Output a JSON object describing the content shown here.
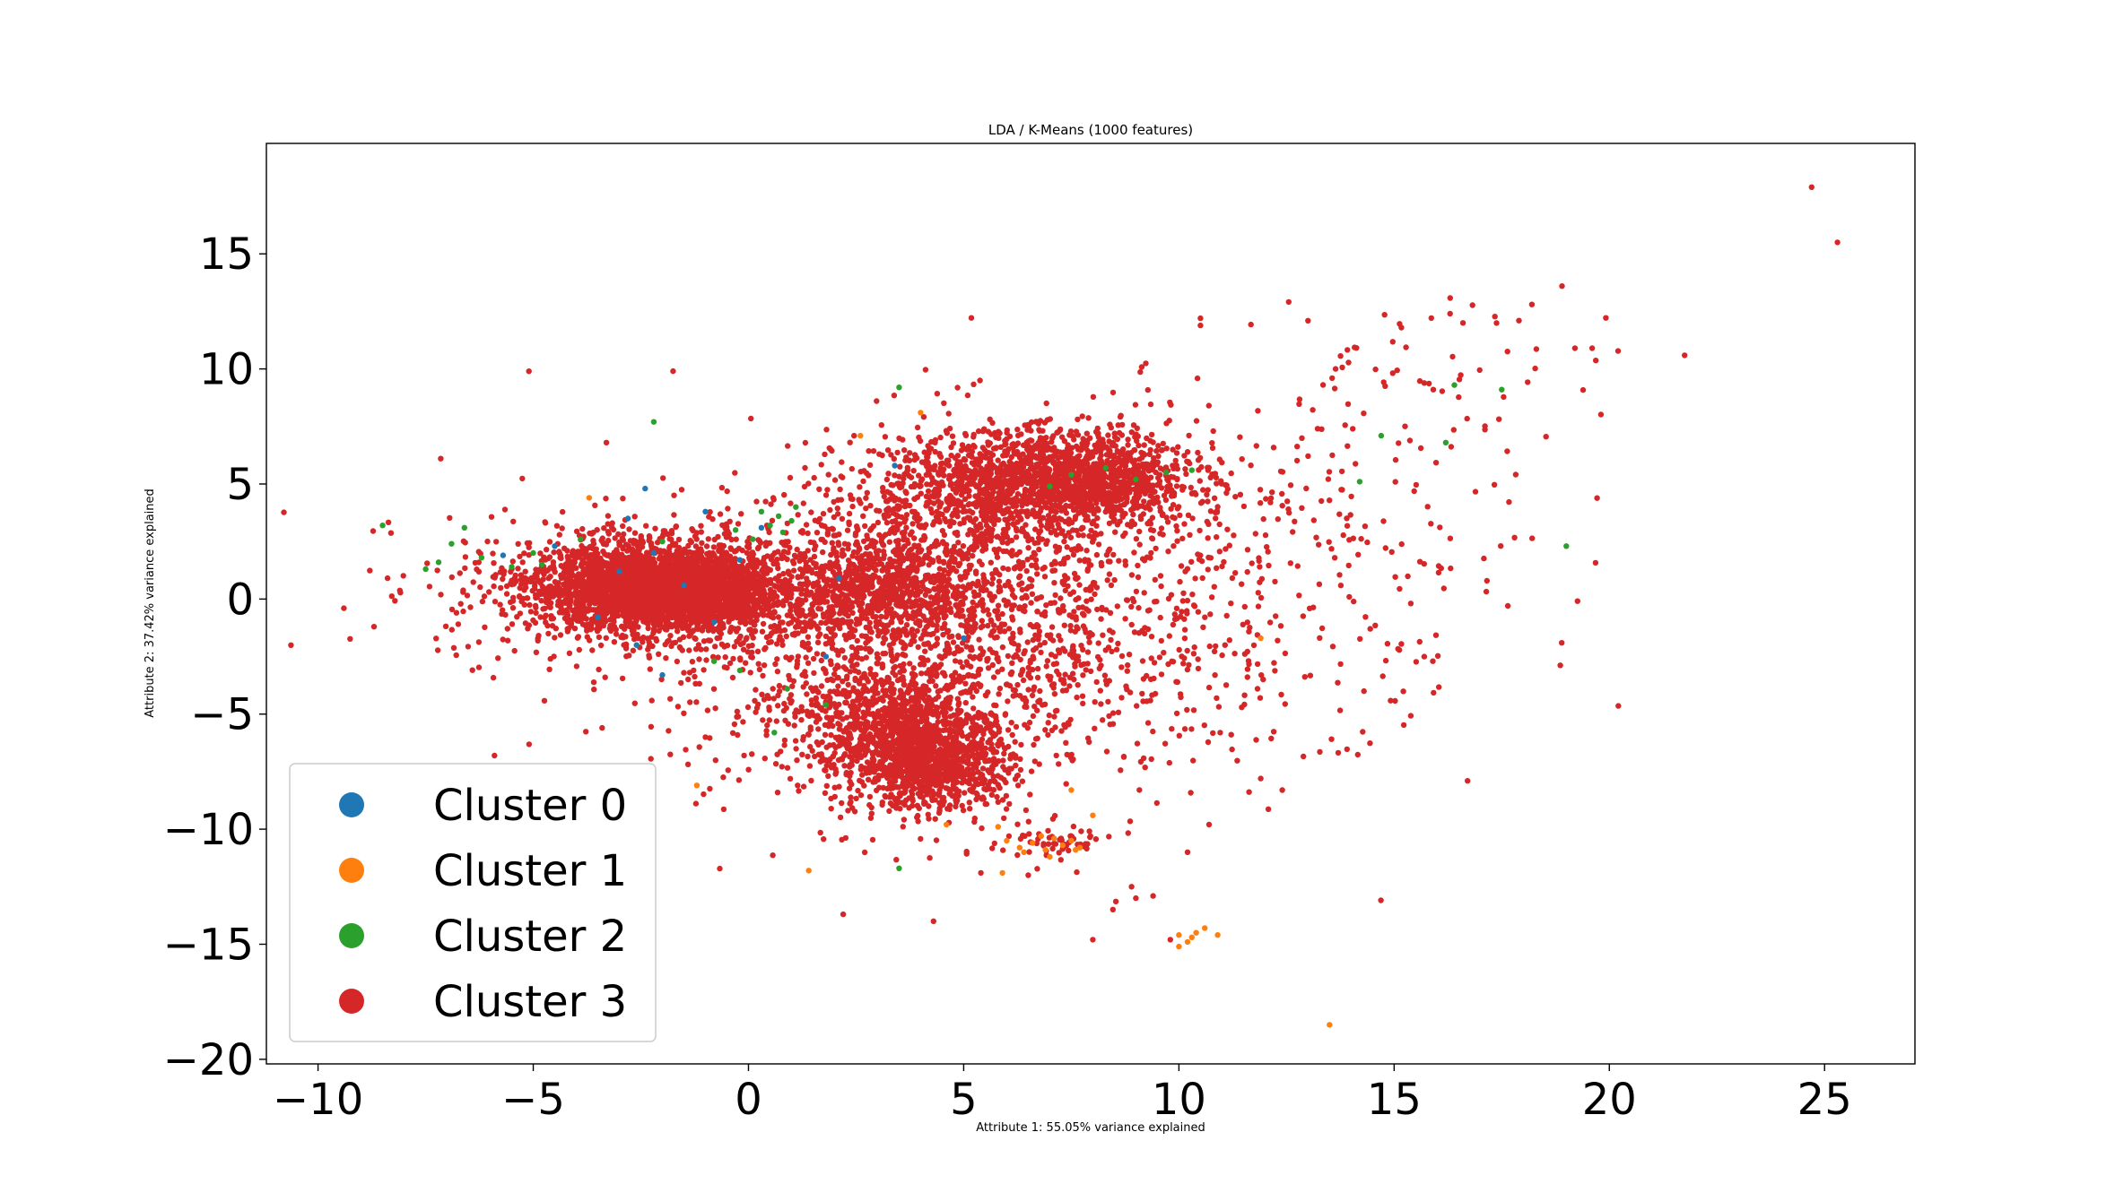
{
  "chart_data": {
    "type": "scatter",
    "title": "LDA / K-Means (1000 features)",
    "xlabel": "Attribute 1: 55.05% variance explained",
    "ylabel": "Attribute 2: 37.42% variance explained",
    "xlim": [
      -11.2,
      27.1
    ],
    "ylim": [
      -20.2,
      19.8
    ],
    "xticks": [
      -10,
      -5,
      0,
      5,
      10,
      15,
      20,
      25
    ],
    "xtick_labels": [
      "−10",
      "−5",
      "0",
      "5",
      "10",
      "15",
      "20",
      "25"
    ],
    "yticks": [
      -20,
      -15,
      -10,
      -5,
      0,
      5,
      10,
      15
    ],
    "ytick_labels": [
      "−20",
      "−15",
      "−10",
      "−5",
      "0",
      "5",
      "10",
      "15"
    ],
    "grid": false,
    "legend_position": "lower-left",
    "series": [
      {
        "name": "Cluster 0",
        "color": "#1f77b4",
        "points": [
          [
            -2.4,
            4.8
          ],
          [
            -2.8,
            3.5
          ],
          [
            -2.0,
            -3.3
          ],
          [
            -1.5,
            0.6
          ],
          [
            -3.0,
            1.2
          ],
          [
            -0.8,
            -1.0
          ],
          [
            -2.2,
            2.0
          ],
          [
            -4.5,
            2.3
          ],
          [
            0.3,
            3.1
          ],
          [
            -1.0,
            3.8
          ],
          [
            -3.5,
            -0.8
          ],
          [
            2.1,
            0.9
          ],
          [
            3.4,
            5.8
          ],
          [
            5.0,
            -1.7
          ],
          [
            -5.7,
            1.9
          ],
          [
            -2.6,
            -2.0
          ],
          [
            1.8,
            -2.5
          ],
          [
            -0.2,
            1.7
          ]
        ]
      },
      {
        "name": "Cluster 1",
        "color": "#ff7f0e",
        "points": [
          [
            6.0,
            -10.5
          ],
          [
            6.3,
            -10.8
          ],
          [
            6.6,
            -10.6
          ],
          [
            6.9,
            -10.9
          ],
          [
            7.1,
            -10.4
          ],
          [
            7.3,
            -10.7
          ],
          [
            7.5,
            -10.5
          ],
          [
            7.7,
            -10.8
          ],
          [
            7.0,
            -11.2
          ],
          [
            6.8,
            -10.3
          ],
          [
            6.4,
            -11.0
          ],
          [
            7.6,
            -10.9
          ],
          [
            10.0,
            -14.6
          ],
          [
            10.2,
            -14.9
          ],
          [
            10.4,
            -14.5
          ],
          [
            10.6,
            -14.3
          ],
          [
            10.9,
            -14.6
          ],
          [
            10.0,
            -15.1
          ],
          [
            10.3,
            -14.7
          ],
          [
            5.9,
            -11.9
          ],
          [
            1.4,
            -11.8
          ],
          [
            2.6,
            7.1
          ],
          [
            4.0,
            8.1
          ],
          [
            11.9,
            -1.7
          ],
          [
            13.5,
            -18.5
          ],
          [
            -3.7,
            4.4
          ],
          [
            -1.2,
            -8.1
          ],
          [
            7.5,
            -8.3
          ],
          [
            4.6,
            -9.8
          ],
          [
            5.8,
            -9.9
          ],
          [
            8.0,
            -9.4
          ]
        ]
      },
      {
        "name": "Cluster 2",
        "color": "#2ca02c",
        "points": [
          [
            -8.5,
            3.2
          ],
          [
            -7.2,
            1.6
          ],
          [
            -6.6,
            3.1
          ],
          [
            -6.2,
            1.8
          ],
          [
            -5.5,
            1.4
          ],
          [
            -5.0,
            2.0
          ],
          [
            -6.9,
            2.4
          ],
          [
            -7.5,
            1.3
          ],
          [
            -2.2,
            7.7
          ],
          [
            0.3,
            3.8
          ],
          [
            0.5,
            3.2
          ],
          [
            0.7,
            3.6
          ],
          [
            0.8,
            2.9
          ],
          [
            1.0,
            3.4
          ],
          [
            1.1,
            4.0
          ],
          [
            0.1,
            2.6
          ],
          [
            -0.3,
            3.0
          ],
          [
            0.9,
            -3.9
          ],
          [
            0.6,
            -5.8
          ],
          [
            1.8,
            -4.6
          ],
          [
            -0.8,
            -2.7
          ],
          [
            -0.2,
            -3.1
          ],
          [
            3.5,
            -11.7
          ],
          [
            3.5,
            9.2
          ],
          [
            7.0,
            4.9
          ],
          [
            7.5,
            5.4
          ],
          [
            8.3,
            5.7
          ],
          [
            9.0,
            5.2
          ],
          [
            9.7,
            5.5
          ],
          [
            10.3,
            5.6
          ],
          [
            14.2,
            5.1
          ],
          [
            14.7,
            7.1
          ],
          [
            16.2,
            6.8
          ],
          [
            16.4,
            9.3
          ],
          [
            17.5,
            9.1
          ],
          [
            19.0,
            2.3
          ],
          [
            -2.0,
            2.5
          ],
          [
            -4.8,
            1.5
          ],
          [
            -3.9,
            2.6
          ]
        ]
      },
      {
        "name": "Cluster 3",
        "color": "#d62728",
        "clusters": [
          {
            "cx": -2.4,
            "cy": 0.5,
            "sx": 1.3,
            "sy": 0.9,
            "n": 2300
          },
          {
            "cx": -1.1,
            "cy": 0.2,
            "sx": 0.8,
            "sy": 0.7,
            "n": 900
          },
          {
            "cx": -2.0,
            "cy": 0.4,
            "sx": 2.6,
            "sy": 1.6,
            "n": 700
          },
          {
            "cx": 7.5,
            "cy": 5.2,
            "sx": 1.4,
            "sy": 1.0,
            "n": 1300
          },
          {
            "cx": 5.5,
            "cy": 4.6,
            "sx": 1.7,
            "sy": 1.4,
            "n": 700
          },
          {
            "cx": 4.3,
            "cy": -7.1,
            "sx": 0.9,
            "sy": 1.0,
            "n": 1000
          },
          {
            "cx": 3.2,
            "cy": -5.5,
            "sx": 1.0,
            "sy": 1.3,
            "n": 600
          },
          {
            "cx": 3.0,
            "cy": 0.6,
            "sx": 1.2,
            "sy": 1.0,
            "n": 600
          },
          {
            "cx": 3.2,
            "cy": -1.5,
            "sx": 2.5,
            "sy": 3.2,
            "n": 1400
          },
          {
            "cx": 6.5,
            "cy": -1.0,
            "sx": 3.2,
            "sy": 4.0,
            "n": 800
          },
          {
            "cx": 7.0,
            "cy": -10.6,
            "sx": 0.7,
            "sy": 0.4,
            "n": 60
          },
          {
            "cx": 12.0,
            "cy": 2.5,
            "sx": 3.0,
            "sy": 3.8,
            "n": 300
          },
          {
            "cx": 16.5,
            "cy": 10.0,
            "sx": 2.2,
            "sy": 1.6,
            "n": 45
          }
        ],
        "points": [
          [
            24.7,
            17.9
          ],
          [
            25.3,
            15.5
          ],
          [
            18.9,
            13.6
          ],
          [
            18.2,
            12.8
          ],
          [
            17.9,
            12.1
          ],
          [
            16.3,
            12.4
          ],
          [
            16.6,
            12.0
          ],
          [
            10.5,
            12.2
          ],
          [
            -5.1,
            9.9
          ],
          [
            -9.4,
            -0.4
          ],
          [
            -8.7,
            -1.2
          ],
          [
            -5.9,
            -6.8
          ],
          [
            2.2,
            -13.7
          ],
          [
            4.3,
            -14.0
          ],
          [
            9.0,
            -13.0
          ],
          [
            9.8,
            -14.8
          ],
          [
            14.3,
            -4.0
          ],
          [
            15.7,
            -2.5
          ],
          [
            15.9,
            -2.7
          ],
          [
            19.2,
            10.9
          ],
          [
            19.6,
            10.9
          ],
          [
            8.9,
            -12.5
          ],
          [
            9.4,
            -12.9
          ],
          [
            8.0,
            -14.8
          ],
          [
            12.4,
            -8.3
          ],
          [
            11.9,
            -7.8
          ],
          [
            10.7,
            -9.8
          ],
          [
            10.2,
            -11.0
          ],
          [
            5.4,
            -11.9
          ],
          [
            6.5,
            -12.0
          ],
          [
            -3.3,
            6.8
          ],
          [
            -1.0,
            -6.0
          ],
          [
            -4.6,
            -2.6
          ],
          [
            -3.4,
            -5.6
          ]
        ]
      }
    ]
  }
}
